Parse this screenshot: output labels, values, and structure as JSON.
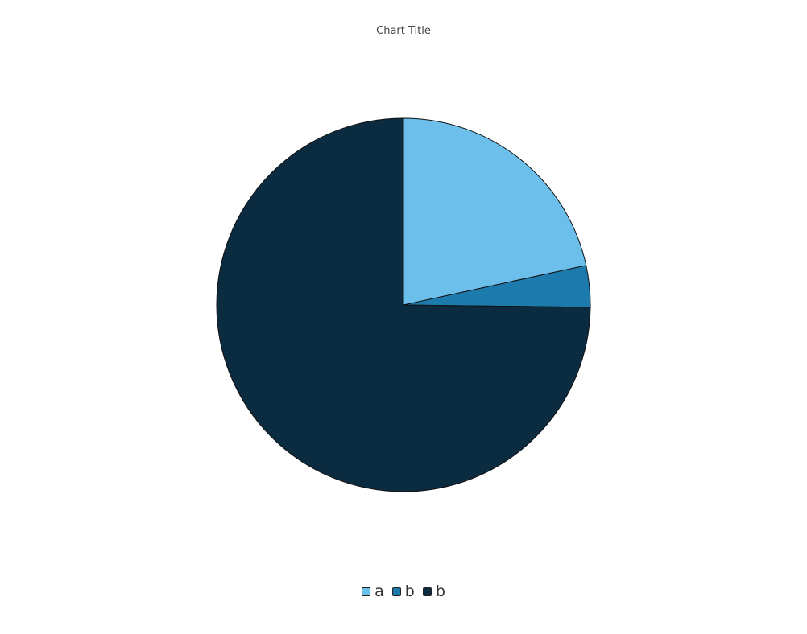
{
  "chart_data": {
    "type": "pie",
    "title": "Chart Title",
    "categories": [
      "a",
      "b",
      "b"
    ],
    "values": [
      21.6,
      3.6,
      74.8
    ],
    "colors": [
      "#6cbfea",
      "#1c7aad",
      "#0a2b40"
    ],
    "start_angle_deg": 0,
    "direction": "clockwise",
    "legend_position": "bottom"
  }
}
